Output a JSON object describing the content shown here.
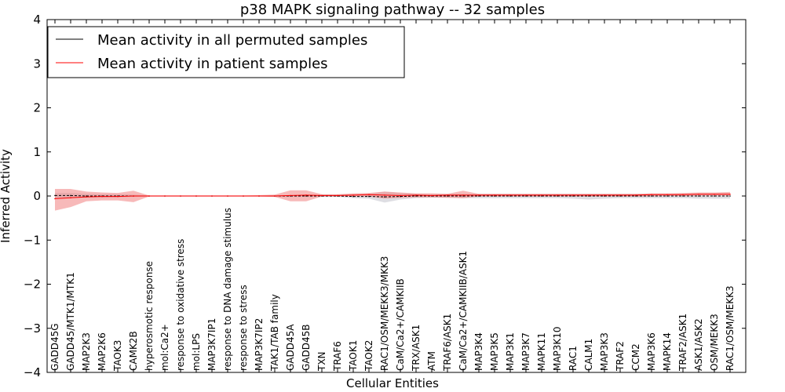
{
  "chart_data": {
    "type": "line",
    "title": "p38 MAPK signaling pathway -- 32 samples",
    "xlabel": "Cellular Entities",
    "ylabel": "Inferred Activity",
    "ylim": [
      -4,
      4
    ],
    "yticks": [
      {
        "value": -4,
        "label": "−4"
      },
      {
        "value": -3,
        "label": "−3"
      },
      {
        "value": -2,
        "label": "−2"
      },
      {
        "value": -1,
        "label": "−1"
      },
      {
        "value": 0,
        "label": "0"
      },
      {
        "value": 1,
        "label": "1"
      },
      {
        "value": 2,
        "label": "2"
      },
      {
        "value": 3,
        "label": "3"
      },
      {
        "value": 4,
        "label": "4"
      }
    ],
    "legend_position": "top-left",
    "categories": [
      "GADD45G",
      "GADD45/MTK1/MTK1",
      "MAP2K3",
      "MAP2K6",
      "TAOK3",
      "CAMK2B",
      "hyperosmotic response",
      "mol:Ca2+",
      "response to oxidative stress",
      "mol:LPS",
      "MAP3K7IP1",
      "response to DNA damage stimulus",
      "response to stress",
      "MAP3K7IP2",
      "TAK1/TAB family",
      "GADD45A",
      "GADD45B",
      "TXN",
      "TRAF6",
      "TAOK1",
      "TAOK2",
      "RAC1/OSM/MEKK3/MKK3",
      "CaM/Ca2+/CAMKIIB",
      "TRX/ASK1",
      "ATM",
      "TRAF6/ASK1",
      "CaM/Ca2+/CAMKIIB/ASK1",
      "MAP3K4",
      "MAP3K5",
      "MAP3K1",
      "MAP3K7",
      "MAPK11",
      "MAP3K10",
      "RAC1",
      "CALM1",
      "MAP3K3",
      "TRAF2",
      "CCM2",
      "MAP3K6",
      "MAPK14",
      "TRAF2/ASK1",
      "ASK1/ASK2",
      "OSM/MEKK3",
      "RAC1/OSM/MEKK3"
    ],
    "series": [
      {
        "name": "Mean activity in all permuted samples",
        "color": "#000000",
        "values": [
          0.01,
          0.01,
          0,
          0,
          0,
          0,
          0,
          0,
          0,
          0,
          0,
          0,
          0,
          0,
          0,
          0,
          0,
          0,
          0,
          -0.01,
          -0.01,
          -0.02,
          -0.01,
          0,
          0,
          0,
          0,
          0,
          0,
          0,
          0,
          0,
          0,
          0,
          0,
          0,
          0,
          0,
          0,
          0,
          0,
          0,
          0,
          0
        ],
        "band_lower": [
          -0.06,
          -0.05,
          -0.04,
          -0.04,
          -0.03,
          -0.02,
          -0.01,
          -0.01,
          -0.01,
          -0.01,
          -0.01,
          -0.01,
          -0.01,
          -0.01,
          -0.02,
          -0.02,
          -0.02,
          -0.02,
          -0.02,
          -0.05,
          -0.06,
          -0.15,
          -0.08,
          -0.05,
          -0.04,
          -0.04,
          -0.05,
          -0.05,
          -0.05,
          -0.05,
          -0.05,
          -0.05,
          -0.05,
          -0.06,
          -0.08,
          -0.06,
          -0.05,
          -0.05,
          -0.05,
          -0.05,
          -0.05,
          -0.06,
          -0.06,
          -0.06
        ],
        "band_upper": [
          0.07,
          0.07,
          0.05,
          0.04,
          0.04,
          0.03,
          0.01,
          0.01,
          0.01,
          0.01,
          0.01,
          0.01,
          0.01,
          0.01,
          0.02,
          0.02,
          0.02,
          0.03,
          0.03,
          0.04,
          0.05,
          0.1,
          0.07,
          0.05,
          0.04,
          0.05,
          0.05,
          0.05,
          0.05,
          0.05,
          0.05,
          0.05,
          0.05,
          0.05,
          0.05,
          0.05,
          0.05,
          0.05,
          0.05,
          0.05,
          0.05,
          0.06,
          0.06,
          0.06
        ],
        "band_color": "#c8c8d0"
      },
      {
        "name": "Mean activity in patient samples",
        "color": "#ff0000",
        "values": [
          -0.06,
          -0.04,
          -0.02,
          -0.01,
          -0.01,
          0,
          0,
          0,
          0,
          0,
          0,
          0,
          0,
          0,
          0,
          0.01,
          0.02,
          0.01,
          0.01,
          0.02,
          0.03,
          0.02,
          0.01,
          0.02,
          0.01,
          0.02,
          0.02,
          0.02,
          0.02,
          0.02,
          0.02,
          0.02,
          0.02,
          0.02,
          0.02,
          0.02,
          0.02,
          0.02,
          0.03,
          0.03,
          0.03,
          0.04,
          0.04,
          0.04
        ],
        "band_lower": [
          -0.33,
          -0.25,
          -0.12,
          -0.1,
          -0.1,
          -0.14,
          -0.01,
          -0.01,
          -0.01,
          -0.01,
          -0.01,
          -0.01,
          -0.01,
          -0.01,
          -0.02,
          -0.12,
          -0.12,
          -0.01,
          -0.01,
          -0.01,
          -0.01,
          -0.06,
          -0.04,
          -0.03,
          -0.03,
          -0.04,
          -0.05,
          -0.01,
          -0.01,
          -0.01,
          -0.01,
          -0.01,
          -0.01,
          -0.01,
          -0.01,
          -0.01,
          -0.01,
          -0.01,
          -0.01,
          0.0,
          0.0,
          0.01,
          0.01,
          0.01
        ],
        "band_upper": [
          0.16,
          0.16,
          0.1,
          0.08,
          0.07,
          0.12,
          0.01,
          0.01,
          0.01,
          0.01,
          0.01,
          0.01,
          0.01,
          0.02,
          0.03,
          0.13,
          0.13,
          0.04,
          0.04,
          0.06,
          0.07,
          0.1,
          0.08,
          0.06,
          0.06,
          0.05,
          0.12,
          0.05,
          0.05,
          0.05,
          0.05,
          0.05,
          0.05,
          0.05,
          0.05,
          0.05,
          0.05,
          0.05,
          0.06,
          0.06,
          0.07,
          0.08,
          0.08,
          0.09
        ],
        "band_color": "#f08080"
      }
    ]
  }
}
